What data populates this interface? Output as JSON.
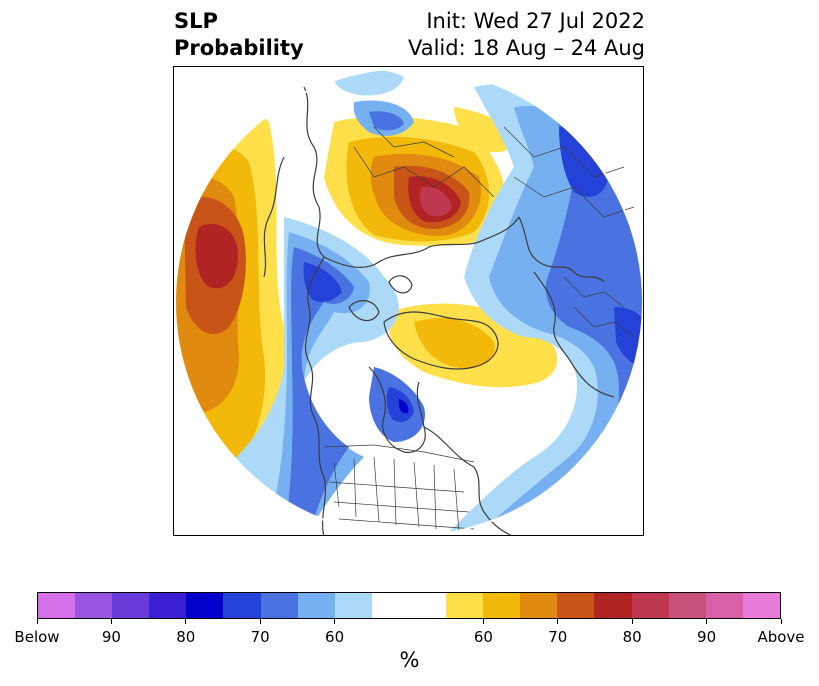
{
  "title": {
    "line1": "SLP",
    "line2": "Probability",
    "init": "Init: Wed 27 Jul 2022",
    "valid": "Valid: 18 Aug – 24 Aug"
  },
  "colorbar": {
    "colors": [
      "#d670e8",
      "#9a55e0",
      "#6a3ad9",
      "#3a1ed2",
      "#0000cc",
      "#2542d8",
      "#4a72e0",
      "#76b0f0",
      "#add9f8",
      "#ffffff",
      "#ffffff",
      "#ffe04a",
      "#f2b80a",
      "#e08a10",
      "#c95418",
      "#b02424",
      "#c03850",
      "#c9507a",
      "#d960a8",
      "#e87ad8"
    ],
    "tick_labels": [
      "Below",
      "90",
      "80",
      "70",
      "60",
      "60",
      "70",
      "80",
      "90",
      "Above"
    ],
    "unit": "%"
  },
  "map": {
    "projection": "north-polar-stereographic",
    "features": [
      "coastlines",
      "country-borders",
      "us-state-borders"
    ],
    "palette": {
      "above_60": "#ffe04a",
      "above_65": "#f2b80a",
      "above_70": "#e08a10",
      "above_75": "#c95418",
      "above_80": "#b02424",
      "above_85": "#c03850",
      "below_60": "#add9f8",
      "below_65": "#76b0f0",
      "below_70": "#4a72e0",
      "below_75": "#2542d8",
      "below_80": "#0000cc",
      "below_85": "#3a1ed2",
      "lines": "#3c3c3c"
    }
  }
}
